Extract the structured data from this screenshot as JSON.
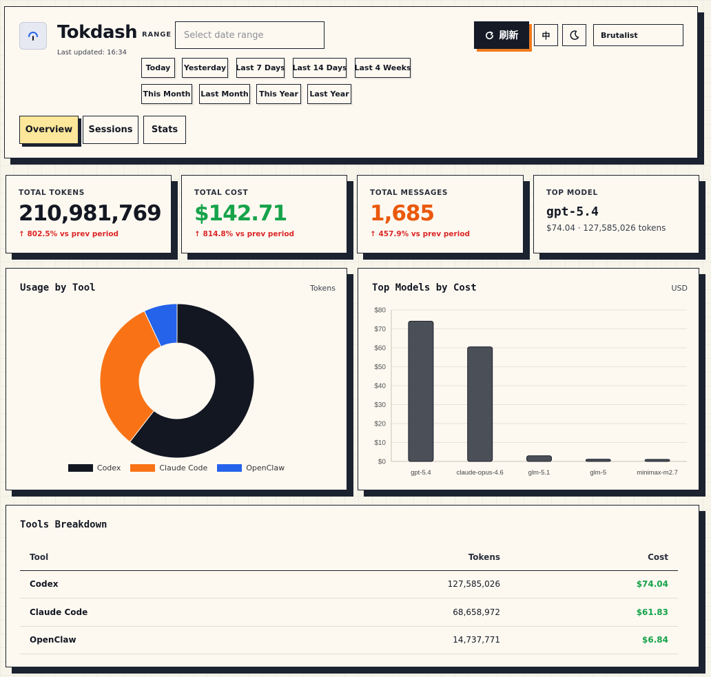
{
  "app": {
    "title": "Tokdash",
    "last_updated": "Last updated: 16:34"
  },
  "range": {
    "label": "RANGE",
    "placeholder": "Select date range",
    "presets": [
      "Today",
      "Yesterday",
      "Last 7 Days",
      "Last 14 Days",
      "Last 4 Weeks",
      "This Month",
      "Last Month",
      "This Year",
      "Last Year"
    ]
  },
  "toolbar": {
    "refresh_label": "刷新",
    "language_label": "中",
    "theme_value": "Brutalist"
  },
  "tabs": [
    {
      "label": "Overview",
      "active": true
    },
    {
      "label": "Sessions",
      "active": false
    },
    {
      "label": "Stats",
      "active": false
    }
  ],
  "stats": {
    "total_tokens": {
      "label": "TOTAL TOKENS",
      "value": "210,981,769",
      "delta": "↑ 802.5% vs prev period"
    },
    "total_cost": {
      "label": "TOTAL COST",
      "value": "$142.71",
      "delta": "↑ 814.8% vs prev period"
    },
    "total_messages": {
      "label": "TOTAL MESSAGES",
      "value": "1,685",
      "delta": "↑ 457.9% vs prev period"
    },
    "top_model": {
      "label": "TOP MODEL",
      "value": "gpt-5.4",
      "sub": "$74.04 · 127,585,026 tokens"
    }
  },
  "colors": {
    "codex": "#131722",
    "claude_code": "#f97316",
    "openclaw": "#2563eb",
    "positive": "#16a34a",
    "negative": "#dc2626",
    "bar": "#4b4f58"
  },
  "chart_data": [
    {
      "type": "pie",
      "title": "Usage by Tool",
      "unit": "Tokens",
      "categories": [
        "Codex",
        "Claude Code",
        "OpenClaw"
      ],
      "values": [
        127585026,
        68658972,
        14737771
      ],
      "colors": [
        "#131722",
        "#f97316",
        "#2563eb"
      ],
      "legend": "bottom"
    },
    {
      "type": "bar",
      "title": "Top Models by Cost",
      "unit": "USD",
      "categories": [
        "gpt-5.4",
        "claude-opus-4.6",
        "glm-5.1",
        "glm-5",
        "minimax-m2.7"
      ],
      "values": [
        74.04,
        60.5,
        3.0,
        1.2,
        1.1
      ],
      "ylim": [
        0,
        80
      ],
      "yticks": [
        "$0",
        "$10",
        "$20",
        "$30",
        "$40",
        "$50",
        "$60",
        "$70",
        "$80"
      ],
      "grid": true
    }
  ],
  "table": {
    "title": "Tools Breakdown",
    "columns": [
      "Tool",
      "Tokens",
      "Cost"
    ],
    "rows": [
      {
        "tool": "Codex",
        "tokens": "127,585,026",
        "cost": "$74.04"
      },
      {
        "tool": "Claude Code",
        "tokens": "68,658,972",
        "cost": "$61.83"
      },
      {
        "tool": "OpenClaw",
        "tokens": "14,737,771",
        "cost": "$6.84"
      }
    ]
  }
}
